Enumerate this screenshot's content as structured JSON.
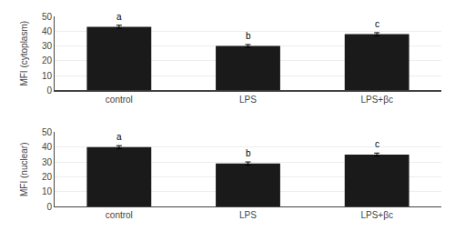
{
  "chart_data": [
    {
      "type": "bar",
      "categories": [
        "control",
        "LPS",
        "LPS+βc"
      ],
      "values": [
        43,
        30,
        38
      ],
      "errors": [
        1.0,
        1.0,
        1.0
      ],
      "annotations": [
        "a",
        "b",
        "c"
      ],
      "ylabel": "MFI (cytoplasm)",
      "color": "#1a1a1a",
      "ylim": [
        0,
        50
      ],
      "yticks": [
        0,
        10,
        20,
        30,
        40,
        50
      ]
    },
    {
      "type": "bar",
      "categories": [
        "control",
        "LPS",
        "LPS+βc"
      ],
      "values": [
        40,
        29,
        35
      ],
      "errors": [
        1.0,
        1.0,
        1.0
      ],
      "annotations": [
        "a",
        "b",
        "c"
      ],
      "ylabel": "MFI (nuclear)",
      "color": "#1a1a1a",
      "ylim": [
        0,
        50
      ],
      "yticks": [
        0,
        10,
        20,
        30,
        40,
        50
      ]
    }
  ]
}
